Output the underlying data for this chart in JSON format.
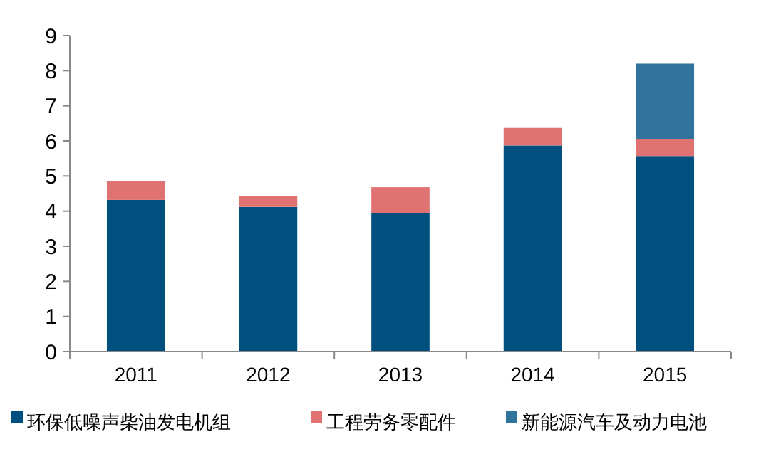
{
  "chart_data": {
    "type": "bar",
    "stacked": true,
    "categories": [
      "2011",
      "2012",
      "2013",
      "2014",
      "2015"
    ],
    "series": [
      {
        "name": "环保低噪声柴油发电机组",
        "color": "#00507f",
        "values": [
          4.32,
          4.12,
          3.95,
          5.87,
          5.57
        ]
      },
      {
        "name": "工程劳务零配件",
        "color": "#e07272",
        "values": [
          0.54,
          0.31,
          0.73,
          0.5,
          0.48
        ]
      },
      {
        "name": "新能源汽车及动力电池",
        "color": "#31739c",
        "values": [
          0,
          0,
          0,
          0,
          2.15
        ]
      }
    ],
    "ylim": [
      0,
      9
    ],
    "yticks": [
      0,
      1,
      2,
      3,
      4,
      5,
      6,
      7,
      8,
      9
    ],
    "grid": false,
    "legend": "bottom"
  }
}
